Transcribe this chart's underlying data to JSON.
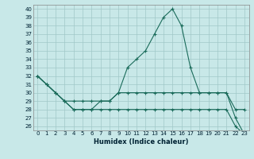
{
  "xlabel": "Humidex (Indice chaleur)",
  "hours": [
    0,
    1,
    2,
    3,
    4,
    5,
    6,
    7,
    8,
    9,
    10,
    11,
    12,
    13,
    14,
    15,
    16,
    17,
    18,
    19,
    20,
    21,
    22,
    23
  ],
  "line1": [
    32,
    31,
    30,
    29,
    29,
    29,
    29,
    29,
    29,
    30,
    33,
    34,
    35,
    37,
    39,
    40,
    38,
    33,
    30,
    30,
    30,
    30,
    28,
    28
  ],
  "line2": [
    32,
    31,
    30,
    29,
    28,
    28,
    28,
    29,
    29,
    30,
    30,
    30,
    30,
    30,
    30,
    30,
    30,
    30,
    30,
    30,
    30,
    30,
    27,
    25
  ],
  "line3": [
    32,
    31,
    30,
    29,
    28,
    28,
    28,
    28,
    28,
    28,
    28,
    28,
    28,
    28,
    28,
    28,
    28,
    28,
    28,
    28,
    28,
    28,
    26,
    25
  ],
  "ylim": [
    25.5,
    40.5
  ],
  "yticks": [
    26,
    27,
    28,
    29,
    30,
    31,
    32,
    33,
    34,
    35,
    36,
    37,
    38,
    39,
    40
  ],
  "line_color": "#1a6b5a",
  "bg_color": "#c8e8e8",
  "grid_color": "#a0c8c8",
  "xlabel_fontsize": 6.0,
  "tick_fontsize": 5.0
}
